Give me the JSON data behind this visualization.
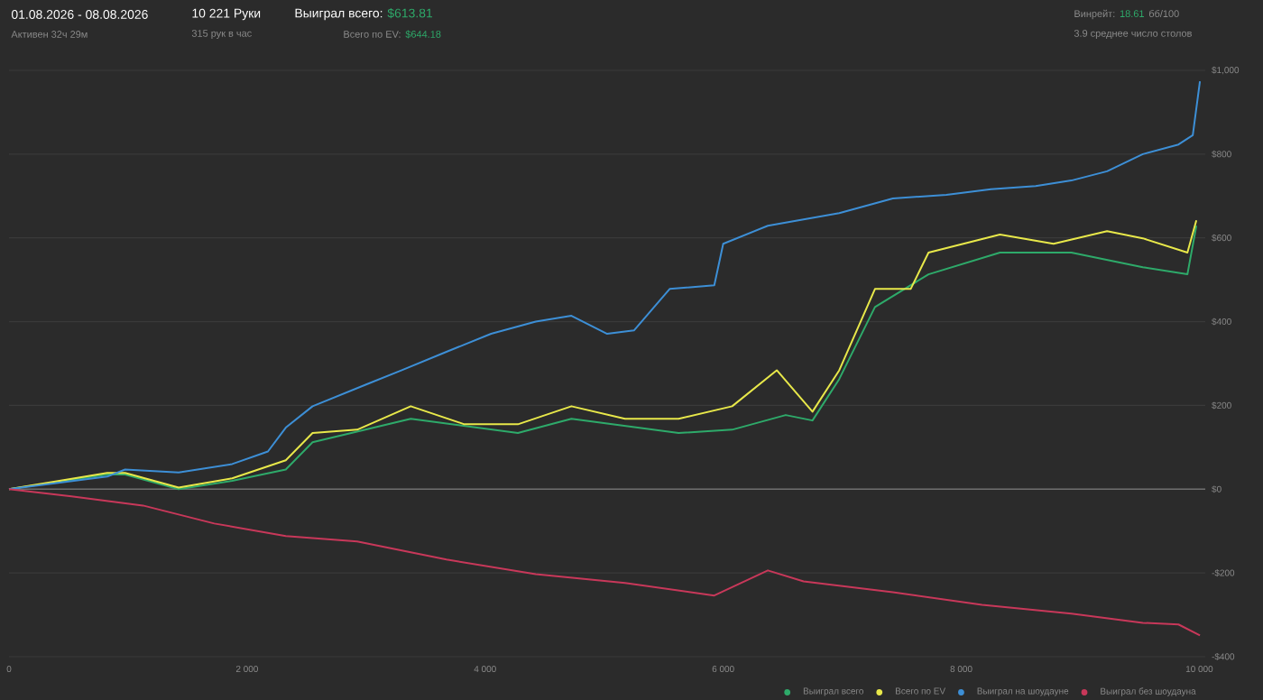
{
  "chart_data": {
    "type": "line",
    "title": "01.08.2026 - 08.08.2026",
    "subtitle": "Активен 32ч 29м",
    "annotations": [
      "10 221 Руки",
      "315 рук в час",
      "Выиграл всего:",
      "$613.81",
      "Всего по EV:",
      "$644.18",
      "Винрейт:",
      "18.61",
      "бб/100",
      "3.9 среднее число столов"
    ],
    "xlim": [
      0,
      10050
    ],
    "ylim": [
      -400,
      1000
    ],
    "xticks": [
      0,
      {
        "value": 2000,
        "label": "2 000"
      },
      {
        "value": 4000,
        "label": "4 000"
      },
      {
        "value": 6000,
        "label": "6 000"
      },
      {
        "value": 8000,
        "label": "8 000"
      },
      {
        "value": 10000,
        "label": "10 000"
      }
    ],
    "yticks": [
      {
        "value": -400,
        "label": "-$400"
      },
      {
        "value": -200,
        "label": "-$200"
      },
      {
        "value": 0,
        "label": "$0"
      },
      {
        "value": 200,
        "label": "$200"
      },
      {
        "value": 400,
        "label": "$400"
      },
      {
        "value": 600,
        "label": "$600"
      },
      {
        "value": 800,
        "label": "$800"
      },
      {
        "value": 1000,
        "label": "$1,000"
      }
    ],
    "grid": "y",
    "legend": "bottom right",
    "marker": "none",
    "line_style": "solid",
    "ref_lines": [
      {
        "axis": "y",
        "value": 0,
        "color": "#6e6e6e"
      }
    ],
    "series": [
      {
        "name": "Выиграл всего",
        "color": "#2eaa6a",
        "x": [
          0,
          825,
          975,
          1425,
          1875,
          2325,
          2550,
          3375,
          4275,
          4725,
          5625,
          6075,
          6525,
          6750,
          6975,
          7275,
          7725,
          8325,
          8925,
          9525,
          9900,
          9975
        ],
        "values": [
          0,
          35,
          35,
          0,
          20,
          47,
          112,
          168,
          134,
          168,
          134,
          142,
          177,
          164,
          263,
          435,
          513,
          565,
          565,
          530,
          513,
          629
        ]
      },
      {
        "name": "Всего по EV",
        "color": "#e8e84a",
        "x": [
          0,
          825,
          975,
          1425,
          1875,
          2325,
          2550,
          2925,
          3375,
          3825,
          4275,
          4725,
          5175,
          5625,
          6075,
          6450,
          6750,
          6975,
          7275,
          7575,
          7725,
          8325,
          8775,
          9225,
          9525,
          9900,
          9975
        ],
        "values": [
          0,
          39,
          39,
          4,
          26,
          69,
          134,
          142,
          198,
          155,
          155,
          198,
          168,
          168,
          198,
          284,
          185,
          284,
          478,
          478,
          565,
          608,
          586,
          616,
          599,
          565,
          642
        ]
      },
      {
        "name": "Выиграл на шоудауне",
        "color": "#3d8fd6",
        "x": [
          0,
          825,
          975,
          1425,
          1875,
          2175,
          2325,
          2550,
          3000,
          3300,
          3675,
          4050,
          4425,
          4725,
          5025,
          5250,
          5550,
          5925,
          6000,
          6375,
          6975,
          7425,
          7875,
          8250,
          8625,
          8925,
          9225,
          9525,
          9825,
          9945,
          10005
        ],
        "values": [
          0,
          30,
          47,
          40,
          60,
          90,
          147,
          198,
          250,
          284,
          328,
          371,
          400,
          414,
          371,
          379,
          478,
          487,
          586,
          629,
          659,
          694,
          703,
          716,
          724,
          737,
          759,
          800,
          823,
          845,
          974
        ]
      },
      {
        "name": "Выиграл без шоудауна",
        "color": "#c8385a",
        "x": [
          0,
          525,
          1125,
          1725,
          2325,
          2925,
          3675,
          4425,
          5175,
          5925,
          6375,
          6675,
          7425,
          8175,
          8925,
          9525,
          9825,
          10005
        ],
        "values": [
          0,
          -17,
          -39,
          -82,
          -112,
          -125,
          -168,
          -203,
          -224,
          -254,
          -194,
          -220,
          -246,
          -276,
          -297,
          -319,
          -323,
          -349
        ]
      }
    ]
  }
}
